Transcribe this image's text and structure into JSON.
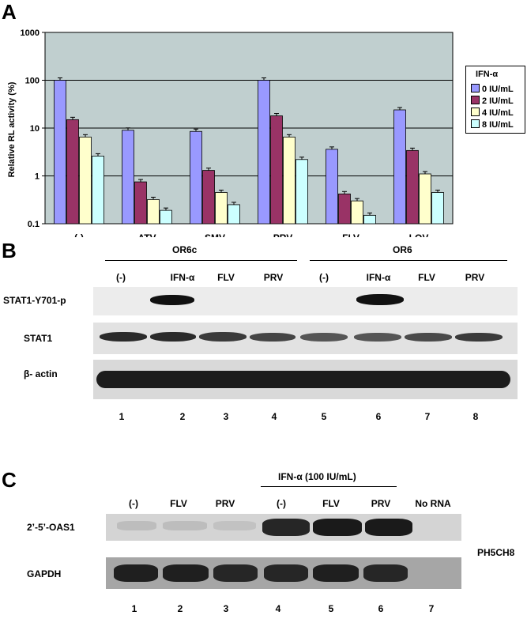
{
  "panelA": {
    "letter": "A",
    "chart_data": {
      "type": "bar",
      "ylabel": "Relative RL activity (%)",
      "yscale": "log",
      "ylim": [
        0.1,
        1000
      ],
      "yticks": [
        "0.1",
        "1",
        "10",
        "100",
        "1000"
      ],
      "categories": [
        "(-)",
        "ATV",
        "SMV",
        "PRV",
        "FLV",
        "LOV"
      ],
      "legend_title": "IFN-α",
      "legend_position": "right",
      "series": [
        {
          "name": "0 IU/mL",
          "color": "#9999ff",
          "values": [
            100,
            9,
            8.5,
            100,
            3.6,
            24
          ]
        },
        {
          "name": "2 IU/mL",
          "color": "#993366",
          "values": [
            15,
            0.75,
            1.3,
            18,
            0.42,
            3.4
          ]
        },
        {
          "name": "4 IU/mL",
          "color": "#ffffcc",
          "values": [
            6.5,
            0.32,
            0.45,
            6.5,
            0.3,
            1.1
          ]
        },
        {
          "name": "8 IU/mL",
          "color": "#ccffff",
          "values": [
            2.6,
            0.19,
            0.25,
            2.2,
            0.15,
            0.45
          ]
        }
      ],
      "grid": true
    }
  },
  "panelB": {
    "letter": "B",
    "group1": "OR6c",
    "group2": "OR6",
    "lanes": [
      "(-)",
      "IFN-α",
      "FLV",
      "PRV",
      "(-)",
      "IFN-α",
      "FLV",
      "PRV"
    ],
    "rows": [
      "STAT1-Y701-p",
      "STAT1",
      "β- actin"
    ],
    "lane_numbers": [
      "1",
      "2",
      "3",
      "4",
      "5",
      "6",
      "7",
      "8"
    ]
  },
  "panelC": {
    "letter": "C",
    "treatment": "IFN-α (100 IU/mL)",
    "lanes": [
      "(-)",
      "FLV",
      "PRV",
      "(-)",
      "FLV",
      "PRV",
      "No RNA"
    ],
    "rows": [
      "2’-5’-OAS1",
      "GAPDH"
    ],
    "cell_line": "PH5CH8",
    "lane_numbers": [
      "1",
      "2",
      "3",
      "4",
      "5",
      "6",
      "7"
    ]
  }
}
